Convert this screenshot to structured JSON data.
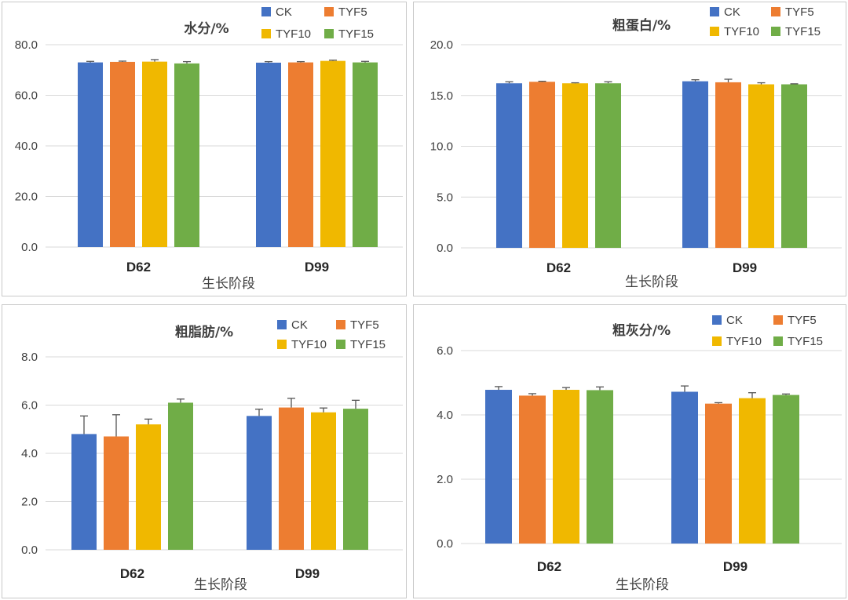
{
  "chart_data": [
    {
      "type": "bar",
      "title": "水分/%",
      "xlabel": "生长阶段",
      "ylabel": "",
      "categories": [
        "D62",
        "D99"
      ],
      "ylim": [
        0,
        80
      ],
      "yticks": [
        "0.0",
        "20.0",
        "40.0",
        "60.0",
        "80.0"
      ],
      "legend_position": "top-right",
      "series": [
        {
          "name": "CK",
          "values": [
            73.0,
            72.9
          ],
          "errors": [
            0.4,
            0.4
          ],
          "color": "#4472C4"
        },
        {
          "name": "TYF5",
          "values": [
            73.2,
            73.0
          ],
          "errors": [
            0.3,
            0.3
          ],
          "color": "#ED7D31"
        },
        {
          "name": "TYF10",
          "values": [
            73.3,
            73.6
          ],
          "errors": [
            0.8,
            0.3
          ],
          "color": "#F0B800"
        },
        {
          "name": "TYF15",
          "values": [
            72.6,
            73.0
          ],
          "errors": [
            0.7,
            0.4
          ],
          "color": "#70AD47"
        }
      ]
    },
    {
      "type": "bar",
      "title": "粗蛋白/%",
      "xlabel": "生长阶段",
      "ylabel": "",
      "categories": [
        "D62",
        "D99"
      ],
      "ylim": [
        0,
        20
      ],
      "yticks": [
        "0.0",
        "5.0",
        "10.0",
        "15.0",
        "20.0"
      ],
      "legend_position": "top-right",
      "series": [
        {
          "name": "CK",
          "values": [
            16.2,
            16.4
          ],
          "errors": [
            0.15,
            0.15
          ],
          "color": "#4472C4"
        },
        {
          "name": "TYF5",
          "values": [
            16.35,
            16.3
          ],
          "errors": [
            0.05,
            0.3
          ],
          "color": "#ED7D31"
        },
        {
          "name": "TYF10",
          "values": [
            16.2,
            16.1
          ],
          "errors": [
            0.05,
            0.15
          ],
          "color": "#F0B800"
        },
        {
          "name": "TYF15",
          "values": [
            16.2,
            16.1
          ],
          "errors": [
            0.15,
            0.05
          ],
          "color": "#70AD47"
        }
      ]
    },
    {
      "type": "bar",
      "title": "粗脂肪/%",
      "xlabel": "生长阶段",
      "ylabel": "",
      "categories": [
        "D62",
        "D99"
      ],
      "ylim": [
        0,
        8
      ],
      "yticks": [
        "0.0",
        "2.0",
        "4.0",
        "6.0",
        "8.0"
      ],
      "legend_position": "top-right",
      "series": [
        {
          "name": "CK",
          "values": [
            4.8,
            5.55
          ],
          "errors": [
            0.75,
            0.28
          ],
          "color": "#4472C4"
        },
        {
          "name": "TYF5",
          "values": [
            4.7,
            5.9
          ],
          "errors": [
            0.9,
            0.38
          ],
          "color": "#ED7D31"
        },
        {
          "name": "TYF10",
          "values": [
            5.2,
            5.7
          ],
          "errors": [
            0.22,
            0.18
          ],
          "color": "#F0B800"
        },
        {
          "name": "TYF15",
          "values": [
            6.1,
            5.85
          ],
          "errors": [
            0.15,
            0.35
          ],
          "color": "#70AD47"
        }
      ]
    },
    {
      "type": "bar",
      "title": "粗灰分/%",
      "xlabel": "生长阶段",
      "ylabel": "",
      "categories": [
        "D62",
        "D99"
      ],
      "ylim": [
        0,
        6
      ],
      "yticks": [
        "0.0",
        "2.0",
        "4.0",
        "6.0"
      ],
      "legend_position": "top-right",
      "series": [
        {
          "name": "CK",
          "values": [
            4.78,
            4.72
          ],
          "errors": [
            0.1,
            0.18
          ],
          "color": "#4472C4"
        },
        {
          "name": "TYF5",
          "values": [
            4.6,
            4.35
          ],
          "errors": [
            0.06,
            0.03
          ],
          "color": "#ED7D31"
        },
        {
          "name": "TYF10",
          "values": [
            4.78,
            4.52
          ],
          "errors": [
            0.07,
            0.17
          ],
          "color": "#F0B800"
        },
        {
          "name": "TYF15",
          "values": [
            4.77,
            4.62
          ],
          "errors": [
            0.1,
            0.03
          ],
          "color": "#70AD47"
        }
      ]
    }
  ]
}
